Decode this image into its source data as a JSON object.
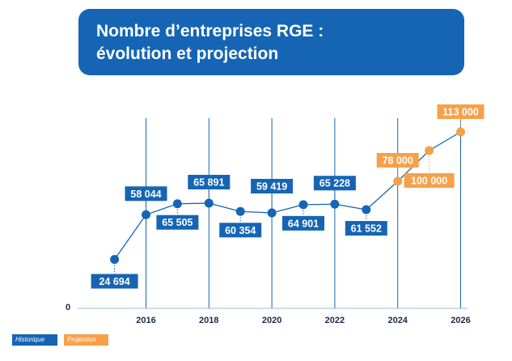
{
  "title": {
    "line1": "Nombre d’entreprises RGE :",
    "line2": "évolution et projection"
  },
  "colors": {
    "historique": "#1565b4",
    "projection": "#f6a14a",
    "text_dark": "#1b2a4a"
  },
  "legend": {
    "historique": "Historique",
    "projection": "Projection"
  },
  "chart_data": {
    "type": "line",
    "title": "Nombre d’entreprises RGE : évolution et projection",
    "xlabel": "",
    "ylabel": "",
    "xlim": [
      2014.5,
      2026
    ],
    "ylim": [
      0,
      113000
    ],
    "x_ticks": [
      "2016",
      "2018",
      "2020",
      "2022",
      "2024",
      "2026"
    ],
    "y_ticks": [
      "0"
    ],
    "series": [
      {
        "name": "Historique",
        "x": [
          2015,
          2016,
          2017,
          2018,
          2019,
          2020,
          2021,
          2022,
          2023
        ],
        "values": [
          24694,
          58044,
          65505,
          65891,
          60354,
          59419,
          64901,
          65228,
          61552
        ],
        "labels": [
          "24 694",
          "58 044",
          "65 505",
          "65 891",
          "60 354",
          "59 419",
          "64 901",
          "65 228",
          "61 552"
        ]
      },
      {
        "name": "Projection",
        "x": [
          2024,
          2025,
          2026
        ],
        "values": [
          78000,
          100000,
          113000
        ],
        "labels": [
          "78 000",
          "100 000",
          "113 000"
        ]
      }
    ]
  }
}
